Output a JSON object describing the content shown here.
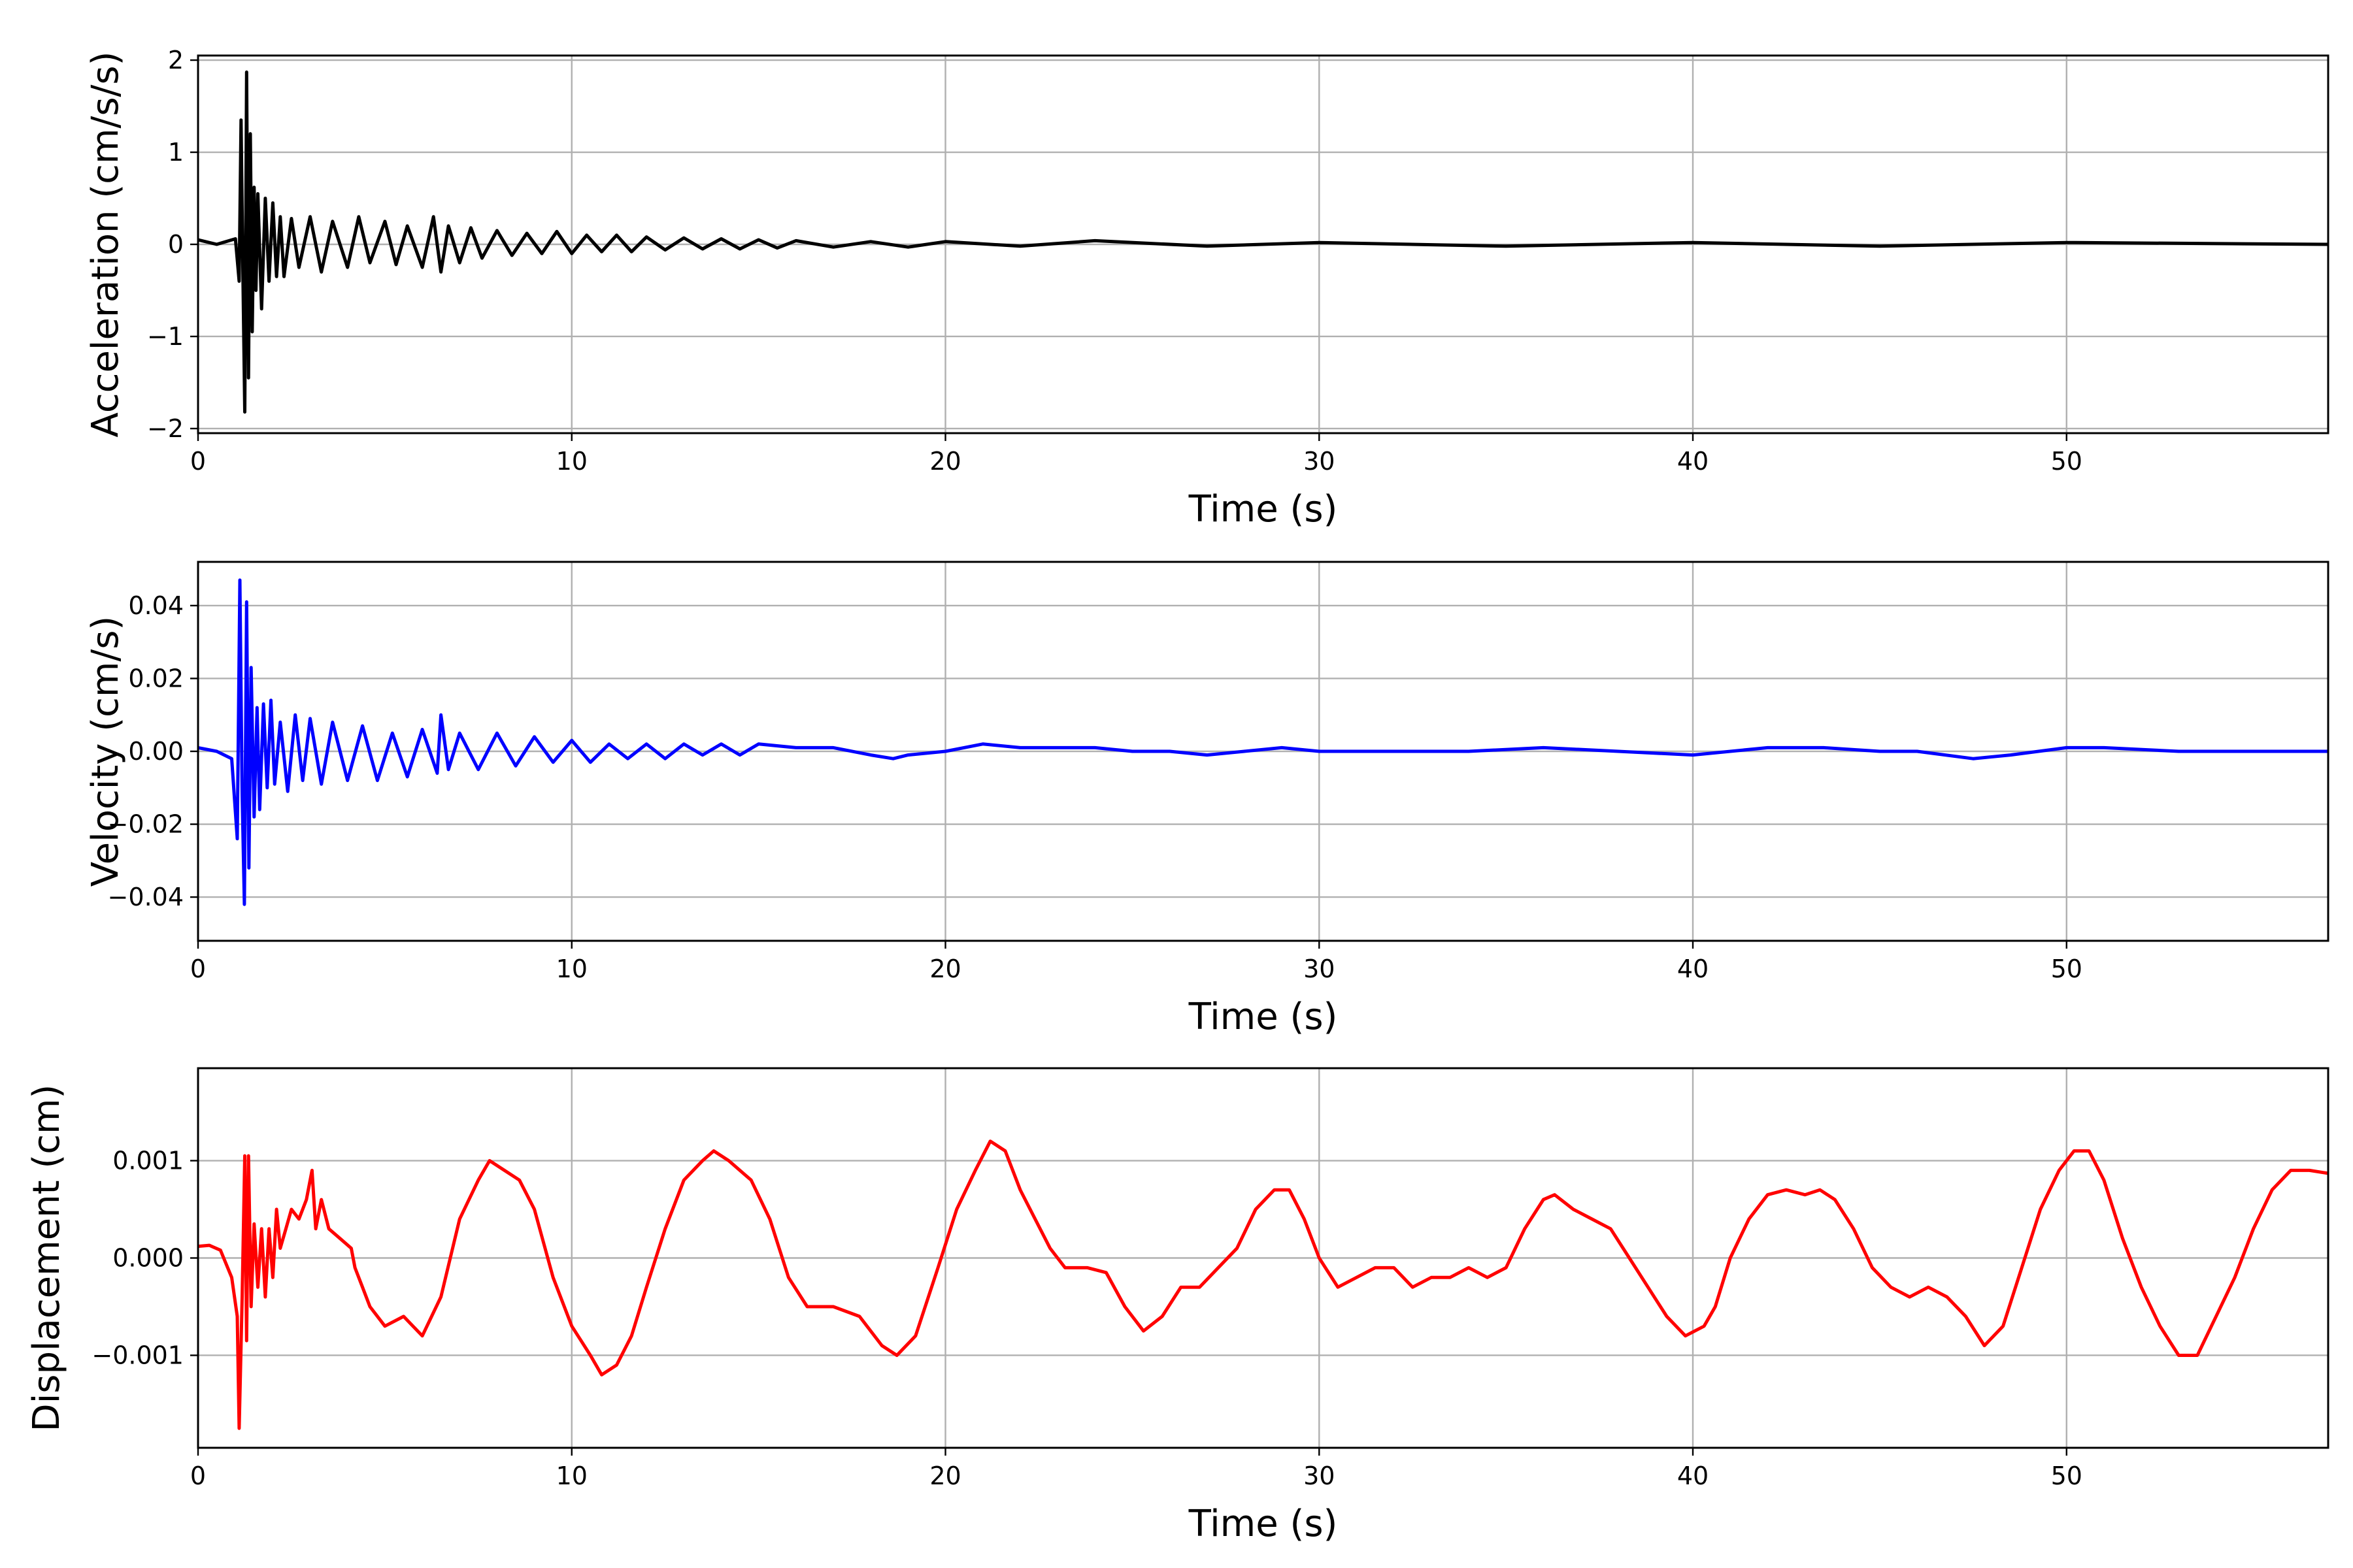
{
  "chart_data": [
    {
      "type": "line",
      "xlabel": "Time (s)",
      "ylabel": "Acceleration (cm/s/s)",
      "xlim": [
        0,
        57
      ],
      "ylim": [
        -2.05,
        2.05
      ],
      "xticks": [
        0,
        10,
        20,
        30,
        40,
        50
      ],
      "xtick_labels": [
        "0",
        "10",
        "20",
        "30",
        "40",
        "50"
      ],
      "yticks": [
        -2,
        -1,
        0,
        1,
        2
      ],
      "ytick_labels": [
        "−2",
        "−1",
        "0",
        "1",
        "2"
      ],
      "grid": true,
      "series": [
        {
          "color": "#000000",
          "x": [
            0,
            0.5,
            1.0,
            1.1,
            1.15,
            1.2,
            1.25,
            1.3,
            1.35,
            1.4,
            1.45,
            1.5,
            1.55,
            1.6,
            1.7,
            1.8,
            1.9,
            2.0,
            2.1,
            2.2,
            2.3,
            2.5,
            2.7,
            3.0,
            3.3,
            3.6,
            4.0,
            4.3,
            4.6,
            5.0,
            5.3,
            5.6,
            6.0,
            6.3,
            6.5,
            6.7,
            7.0,
            7.3,
            7.6,
            8.0,
            8.4,
            8.8,
            9.2,
            9.6,
            10.0,
            10.4,
            10.8,
            11.2,
            11.6,
            12.0,
            12.5,
            13.0,
            13.5,
            14.0,
            14.5,
            15.0,
            15.5,
            16.0,
            17.0,
            18.0,
            19.0,
            20.0,
            22.0,
            24.0,
            27.0,
            30.0,
            35.0,
            40.0,
            45.0,
            50.0,
            57.0
          ],
          "y": [
            0.05,
            0.0,
            0.06,
            -0.4,
            1.35,
            -0.3,
            -1.82,
            1.87,
            -1.45,
            1.2,
            -0.95,
            0.62,
            -0.5,
            0.55,
            -0.7,
            0.5,
            -0.4,
            0.45,
            -0.35,
            0.3,
            -0.35,
            0.28,
            -0.25,
            0.3,
            -0.3,
            0.25,
            -0.25,
            0.3,
            -0.2,
            0.25,
            -0.22,
            0.2,
            -0.25,
            0.3,
            -0.3,
            0.2,
            -0.2,
            0.18,
            -0.15,
            0.15,
            -0.12,
            0.12,
            -0.1,
            0.14,
            -0.1,
            0.1,
            -0.08,
            0.1,
            -0.08,
            0.08,
            -0.06,
            0.07,
            -0.05,
            0.06,
            -0.05,
            0.05,
            -0.04,
            0.04,
            -0.03,
            0.03,
            -0.03,
            0.03,
            -0.02,
            0.04,
            -0.02,
            0.02,
            -0.02,
            0.02,
            -0.02,
            0.02,
            0.0
          ]
        }
      ]
    },
    {
      "type": "line",
      "xlabel": "Time (s)",
      "ylabel": "Velocity (cm/s)",
      "xlim": [
        0,
        57
      ],
      "ylim": [
        -0.052,
        0.052
      ],
      "xticks": [
        0,
        10,
        20,
        30,
        40,
        50
      ],
      "xtick_labels": [
        "0",
        "10",
        "20",
        "30",
        "40",
        "50"
      ],
      "yticks": [
        -0.04,
        -0.02,
        0.0,
        0.02,
        0.04
      ],
      "ytick_labels": [
        "−0.04",
        "−0.02",
        "0.00",
        "0.02",
        "0.04"
      ],
      "grid": true,
      "series": [
        {
          "color": "#0000ff",
          "x": [
            0,
            0.5,
            0.9,
            1.05,
            1.12,
            1.18,
            1.24,
            1.3,
            1.36,
            1.42,
            1.5,
            1.58,
            1.65,
            1.75,
            1.85,
            1.95,
            2.05,
            2.2,
            2.4,
            2.6,
            2.8,
            3.0,
            3.3,
            3.6,
            4.0,
            4.4,
            4.8,
            5.2,
            5.6,
            6.0,
            6.4,
            6.5,
            6.7,
            7.0,
            7.5,
            8.0,
            8.5,
            9.0,
            9.5,
            10.0,
            10.5,
            11.0,
            11.5,
            12.0,
            12.5,
            13.0,
            13.5,
            14.0,
            14.5,
            15.0,
            16.0,
            17.0,
            18.0,
            18.6,
            19.0,
            20.0,
            21.0,
            22.0,
            23.0,
            24.0,
            25.0,
            26.0,
            27.0,
            28.0,
            29.0,
            30.0,
            32.0,
            34.0,
            36.0,
            38.0,
            40.0,
            42.0,
            43.5,
            45.0,
            46.0,
            47.5,
            48.5,
            50.0,
            51.0,
            53.0,
            55.0,
            57.0
          ],
          "y": [
            0.001,
            0.0,
            -0.002,
            -0.024,
            0.047,
            -0.012,
            -0.042,
            0.041,
            -0.032,
            0.023,
            -0.018,
            0.012,
            -0.016,
            0.013,
            -0.01,
            0.014,
            -0.009,
            0.008,
            -0.011,
            0.01,
            -0.008,
            0.009,
            -0.009,
            0.008,
            -0.008,
            0.007,
            -0.008,
            0.005,
            -0.007,
            0.006,
            -0.006,
            0.01,
            -0.005,
            0.005,
            -0.005,
            0.005,
            -0.004,
            0.004,
            -0.003,
            0.003,
            -0.003,
            0.002,
            -0.002,
            0.002,
            -0.002,
            0.002,
            -0.001,
            0.002,
            -0.001,
            0.002,
            0.001,
            0.001,
            -0.001,
            -0.002,
            -0.001,
            0.0,
            0.002,
            0.001,
            0.001,
            0.001,
            0.0,
            0.0,
            -0.001,
            0.0,
            0.001,
            0.0,
            0.0,
            0.0,
            0.001,
            0.0,
            -0.001,
            0.001,
            0.001,
            0.0,
            0.0,
            -0.002,
            -0.001,
            0.001,
            0.001,
            0.0,
            0.0,
            0.0
          ]
        }
      ]
    },
    {
      "type": "line",
      "xlabel": "Time (s)",
      "ylabel": "Displacement (cm)",
      "xlim": [
        0,
        57
      ],
      "ylim": [
        -0.00195,
        0.00195
      ],
      "xticks": [
        0,
        10,
        20,
        30,
        40,
        50
      ],
      "xtick_labels": [
        "0",
        "10",
        "20",
        "30",
        "40",
        "50"
      ],
      "yticks": [
        -0.001,
        0.0,
        0.001
      ],
      "ytick_labels": [
        "−0.001",
        "0.000",
        "0.001"
      ],
      "grid": true,
      "series": [
        {
          "color": "#ff0000",
          "x": [
            0,
            0.3,
            0.6,
            0.9,
            1.05,
            1.1,
            1.18,
            1.25,
            1.3,
            1.35,
            1.42,
            1.5,
            1.6,
            1.7,
            1.8,
            1.9,
            2.0,
            2.1,
            2.2,
            2.35,
            2.5,
            2.7,
            2.9,
            3.05,
            3.15,
            3.3,
            3.5,
            3.8,
            4.1,
            4.2,
            4.4,
            4.6,
            5.0,
            5.5,
            6.0,
            6.5,
            7.0,
            7.5,
            7.8,
            8.2,
            8.6,
            9.0,
            9.5,
            10.0,
            10.5,
            10.8,
            11.2,
            11.6,
            12.0,
            12.5,
            13.0,
            13.5,
            13.8,
            14.2,
            14.8,
            15.3,
            15.8,
            16.3,
            17.0,
            17.7,
            18.3,
            18.7,
            19.2,
            19.8,
            20.3,
            20.8,
            21.2,
            21.6,
            22.0,
            22.4,
            22.8,
            23.2,
            23.8,
            24.3,
            24.8,
            25.3,
            25.8,
            26.3,
            26.8,
            27.3,
            27.8,
            28.3,
            28.8,
            29.2,
            29.6,
            30.0,
            30.5,
            31.0,
            31.5,
            32.0,
            32.5,
            33.0,
            33.5,
            34.0,
            34.5,
            35.0,
            35.5,
            36.0,
            36.3,
            36.8,
            37.3,
            37.8,
            38.3,
            38.8,
            39.3,
            39.8,
            40.3,
            40.6,
            41.0,
            41.5,
            42.0,
            42.5,
            43.0,
            43.4,
            43.8,
            44.3,
            44.8,
            45.3,
            45.8,
            46.3,
            46.8,
            47.3,
            47.8,
            48.3,
            48.8,
            49.3,
            49.8,
            50.2,
            50.6,
            51.0,
            51.5,
            52.0,
            52.5,
            53.0,
            53.5,
            54.0,
            54.5,
            55.0,
            55.5,
            56.0,
            56.5,
            57.0
          ],
          "y": [
            0.00012,
            0.00013,
            8e-05,
            -0.0002,
            -0.0006,
            -0.00175,
            -0.0004,
            0.00105,
            -0.00085,
            0.00105,
            -0.0005,
            0.00035,
            -0.0003,
            0.0003,
            -0.0004,
            0.0003,
            -0.0002,
            0.0005,
            0.0001,
            0.0003,
            0.0005,
            0.0004,
            0.0006,
            0.0009,
            0.0003,
            0.0006,
            0.0003,
            0.0002,
            0.0001,
            -0.0001,
            -0.0003,
            -0.0005,
            -0.0007,
            -0.0006,
            -0.0008,
            -0.0004,
            0.0004,
            0.0008,
            0.001,
            0.0009,
            0.0008,
            0.0005,
            -0.0002,
            -0.0007,
            -0.001,
            -0.0012,
            -0.0011,
            -0.0008,
            -0.0003,
            0.0003,
            0.0008,
            0.001,
            0.0011,
            0.001,
            0.0008,
            0.0004,
            -0.0002,
            -0.0005,
            -0.0005,
            -0.0006,
            -0.0009,
            -0.001,
            -0.0008,
            -0.0001,
            0.0005,
            0.0009,
            0.0012,
            0.0011,
            0.0007,
            0.0004,
            0.0001,
            -0.0001,
            -0.0001,
            -0.00015,
            -0.0005,
            -0.00075,
            -0.0006,
            -0.0003,
            -0.0003,
            -0.0001,
            0.0001,
            0.0005,
            0.0007,
            0.0007,
            0.0004,
            0.0,
            -0.0003,
            -0.0002,
            -0.0001,
            -0.0001,
            -0.0003,
            -0.0002,
            -0.0002,
            -0.0001,
            -0.0002,
            -0.0001,
            0.0003,
            0.0006,
            0.00065,
            0.0005,
            0.0004,
            0.0003,
            0.0,
            -0.0003,
            -0.0006,
            -0.0008,
            -0.0007,
            -0.0005,
            0.0,
            0.0004,
            0.00065,
            0.0007,
            0.00065,
            0.0007,
            0.0006,
            0.0003,
            -0.0001,
            -0.0003,
            -0.0004,
            -0.0003,
            -0.0004,
            -0.0006,
            -0.0009,
            -0.0007,
            -0.0001,
            0.0005,
            0.0009,
            0.0011,
            0.0011,
            0.0008,
            0.0002,
            -0.0003,
            -0.0007,
            -0.001,
            -0.001,
            -0.0006,
            -0.0002,
            0.0003,
            0.0007,
            0.0009,
            0.0009,
            0.00087
          ]
        }
      ]
    }
  ]
}
